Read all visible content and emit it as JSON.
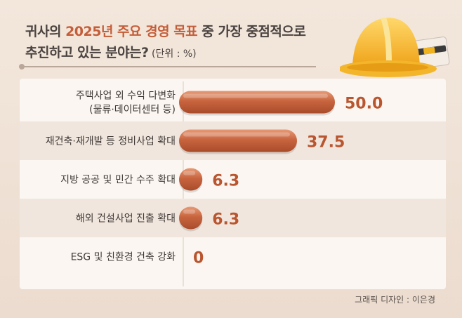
{
  "title": {
    "prefix": "귀사의 ",
    "highlight": "2025년 주요 경영 목표",
    "suffix": " 중 가장 중점적으로",
    "line2": "추진하고 있는 분야는?",
    "unit": " (단위 : %)"
  },
  "credit": "그래픽 디자인 : 이은경",
  "colors": {
    "bar_main": "#c8653f",
    "bar_highlight": "#e79a76",
    "value_text": "#b9552f",
    "row_alt": "#f1e6dd"
  },
  "chart_data": {
    "type": "bar",
    "orientation": "horizontal",
    "categories": [
      [
        "주택사업 외 수익 다변화",
        "(물류·데이터센터 등)"
      ],
      [
        "재건축·재개발 등 정비사업 확대"
      ],
      [
        "지방 공공 및 민간 수주 확대"
      ],
      [
        "해외 건설사업 진출 확대"
      ],
      [
        "ESG 및 친환경 건축 강화"
      ]
    ],
    "values": [
      50.0,
      37.5,
      6.3,
      6.3,
      0
    ],
    "value_labels": [
      "50.0",
      "37.5",
      "6.3",
      "6.3",
      "0"
    ],
    "xlim": [
      0,
      50
    ]
  }
}
